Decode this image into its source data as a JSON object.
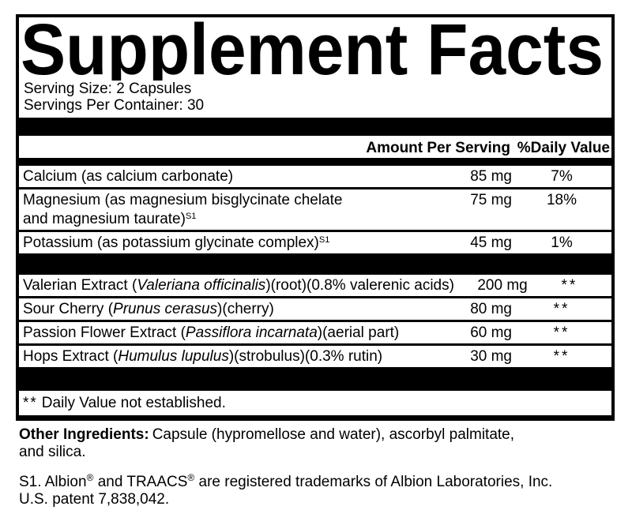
{
  "title": "Supplement Facts",
  "serving": {
    "size": "Serving Size: 2 Capsules",
    "per_container": "Servings Per Container: 30"
  },
  "columns": {
    "amount": "Amount Per Serving",
    "daily_value": "%Daily Value"
  },
  "rows": [
    {
      "name": "Calcium (as calcium carbonate)",
      "amount": "85 mg",
      "dv": "7%"
    },
    {
      "line1": "Magnesium (as magnesium bisglycinate chelate",
      "line2": "and magnesium taurate)",
      "sup": "S1",
      "amount": "75 mg",
      "dv": "18%"
    },
    {
      "name": "Potassium (as potassium glycinate complex)",
      "sup": "S1",
      "amount": "45 mg",
      "dv": "1%"
    },
    {
      "pre": "Valerian Extract (",
      "latin": "Valeriana officinalis",
      "post": ")(root)(0.8% valerenic acids)",
      "amount": "200 mg",
      "dv": "**"
    },
    {
      "pre": "Sour Cherry (",
      "latin": "Prunus cerasus",
      "post": ")(cherry)",
      "amount": "80 mg",
      "dv": "**"
    },
    {
      "pre": "Passion Flower Extract (",
      "latin": "Passiflora incarnata",
      "post": ")(aerial part)",
      "amount": "60 mg",
      "dv": "**"
    },
    {
      "pre": "Hops Extract (",
      "latin": "Humulus lupulus",
      "post": ")(strobulus)(0.3% rutin)",
      "amount": "30 mg",
      "dv": "**"
    }
  ],
  "footnote": {
    "marker": "**",
    "text": "Daily Value not established."
  },
  "other_ingredients": {
    "label": "Other Ingredients:",
    "line1_rest": "Capsule (hypromellose and water), ascorbyl palmitate,",
    "line2": "and silica."
  },
  "trademark": {
    "pre": "S1. Albion",
    "reg1": "®",
    "mid": " and TRAACS",
    "reg2": "®",
    "post": " are registered trademarks of Albion Laboratories, Inc.",
    "patent": "U.S. patent 7,838,042."
  },
  "colors": {
    "ink": "#000000",
    "background": "#ffffff"
  }
}
